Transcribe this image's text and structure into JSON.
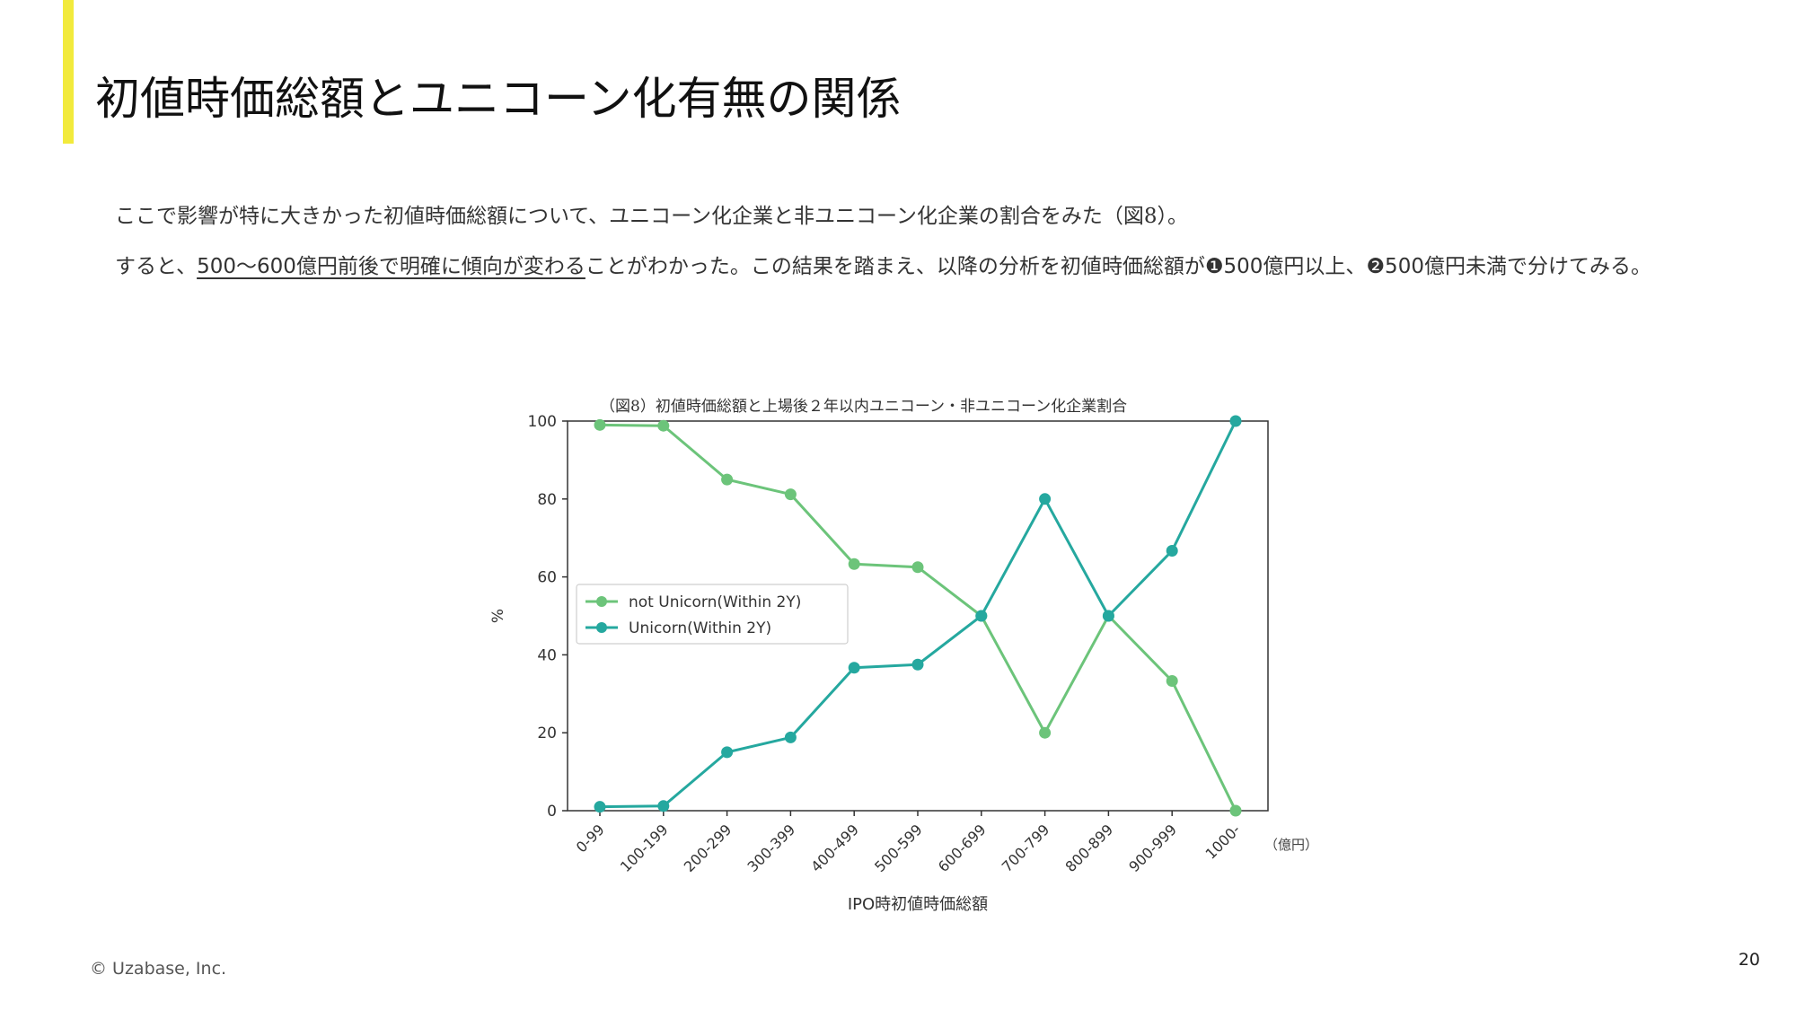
{
  "slide": {
    "title": "初値時価総額とユニコーン化有無の関係",
    "paragraph1": "ここで影響が特に大きかった初値時価総額について、ユニコーン化企業と非ユニコーン化企業の割合をみた（図8）。",
    "paragraph2": {
      "lead": "すると、",
      "underlined": "500～600億円前後で明確に傾向が変わる",
      "mid": "ことがわかった。この結果を踏まえ、以降の分析を初値時価総額が",
      "item1": "❶500億円以上、",
      "item2": "❷500億円未満で分けてみる。"
    },
    "footer": "© Uzabase, Inc.",
    "page_number": "20"
  },
  "chart_data": {
    "type": "line",
    "title": "（図8）初値時価総額と上場後２年以内ユニコーン・非ユニコーン化企業割合",
    "xlabel": "IPO時初値時価総額",
    "ylabel": "%",
    "x_unit": "（億円）",
    "categories": [
      "0-99",
      "100-199",
      "200-299",
      "300-399",
      "400-499",
      "500-599",
      "600-699",
      "700-799",
      "800-899",
      "900-999",
      "1000-"
    ],
    "ylim": [
      0,
      100
    ],
    "yticks": [
      0,
      20,
      40,
      60,
      80,
      100
    ],
    "legend_position": "center-left",
    "grid": false,
    "series": [
      {
        "name": "not Unicorn(Within 2Y)",
        "color": "#6cc47a",
        "values": [
          99,
          98.8,
          85,
          81.2,
          63.3,
          62.5,
          50,
          20,
          50,
          33.3,
          0
        ]
      },
      {
        "name": "Unicorn(Within 2Y)",
        "color": "#25a89f",
        "values": [
          1,
          1.2,
          15,
          18.8,
          36.7,
          37.5,
          50,
          80,
          50,
          66.7,
          100
        ]
      }
    ]
  }
}
